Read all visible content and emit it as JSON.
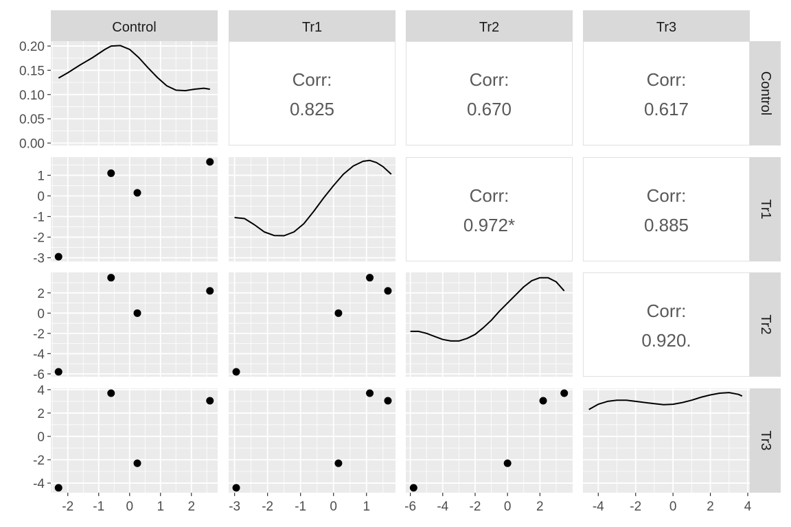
{
  "chart_data": {
    "type": "scatter",
    "variables": [
      "Control",
      "Tr1",
      "Tr2",
      "Tr3"
    ],
    "observations": {
      "Control": [
        -2.3,
        -0.6,
        0.25,
        2.6
      ],
      "Tr1": [
        -2.95,
        1.1,
        0.15,
        1.65
      ],
      "Tr2": [
        -5.8,
        3.5,
        0.0,
        2.2
      ],
      "Tr3": [
        -4.4,
        3.7,
        -2.3,
        3.05
      ]
    },
    "density_tick_labels": [
      "0.20",
      "0.15",
      "0.10",
      "0.05",
      "0.00"
    ],
    "density_ticks": [
      0.2,
      0.15,
      0.1,
      0.05,
      0.0
    ],
    "density_ylim": [
      -0.005,
      0.21
    ],
    "density_curves": {
      "Control": {
        "x": [
          -2.3,
          -2.0,
          -1.6,
          -1.2,
          -0.8,
          -0.6,
          -0.3,
          0.0,
          0.3,
          0.6,
          0.9,
          1.2,
          1.5,
          1.8,
          2.1,
          2.4,
          2.6
        ],
        "y": [
          0.134,
          0.145,
          0.161,
          0.176,
          0.193,
          0.2,
          0.201,
          0.193,
          0.176,
          0.155,
          0.135,
          0.118,
          0.109,
          0.108,
          0.111,
          0.113,
          0.111
        ]
      },
      "Tr1": {
        "x": [
          -3.0,
          -2.7,
          -2.4,
          -2.1,
          -1.8,
          -1.5,
          -1.2,
          -0.9,
          -0.6,
          -0.3,
          0.0,
          0.3,
          0.6,
          0.9,
          1.1,
          1.3,
          1.5,
          1.75
        ],
        "y": [
          -1.05,
          -1.1,
          -1.4,
          -1.75,
          -1.92,
          -1.93,
          -1.75,
          -1.35,
          -0.75,
          -0.1,
          0.5,
          1.05,
          1.45,
          1.68,
          1.72,
          1.62,
          1.42,
          1.05
        ]
      },
      "Tr2": {
        "x": [
          -6.0,
          -5.5,
          -5.0,
          -4.5,
          -4.0,
          -3.5,
          -3.0,
          -2.5,
          -2.0,
          -1.5,
          -1.0,
          -0.5,
          0.0,
          0.5,
          1.0,
          1.5,
          2.0,
          2.5,
          3.0,
          3.5
        ],
        "y": [
          -1.8,
          -1.8,
          -2.0,
          -2.3,
          -2.6,
          -2.75,
          -2.75,
          -2.5,
          -2.1,
          -1.45,
          -0.7,
          0.2,
          1.0,
          1.8,
          2.6,
          3.2,
          3.5,
          3.5,
          3.1,
          2.2
        ]
      },
      "Tr3": {
        "x": [
          -4.5,
          -4.0,
          -3.5,
          -3.0,
          -2.5,
          -2.0,
          -1.5,
          -1.0,
          -0.5,
          0.0,
          0.5,
          1.0,
          1.5,
          2.0,
          2.5,
          3.0,
          3.5,
          3.7
        ],
        "y": [
          2.3,
          2.75,
          3.0,
          3.1,
          3.1,
          3.0,
          2.9,
          2.8,
          2.72,
          2.75,
          2.9,
          3.1,
          3.35,
          3.55,
          3.7,
          3.75,
          3.6,
          3.45
        ]
      }
    },
    "correlations": [
      {
        "row": "Control",
        "col": "Tr1",
        "label": "Corr:",
        "value": "0.825"
      },
      {
        "row": "Control",
        "col": "Tr2",
        "label": "Corr:",
        "value": "0.670"
      },
      {
        "row": "Control",
        "col": "Tr3",
        "label": "Corr:",
        "value": "0.617"
      },
      {
        "row": "Tr1",
        "col": "Tr2",
        "label": "Corr:",
        "value": "0.972*"
      },
      {
        "row": "Tr1",
        "col": "Tr3",
        "label": "Corr:",
        "value": "0.885"
      },
      {
        "row": "Tr2",
        "col": "Tr3",
        "label": "Corr:",
        "value": "0.920."
      }
    ],
    "x_axes": {
      "Control": {
        "lim": [
          -2.55,
          2.85
        ],
        "ticks": [
          -2,
          -1,
          0,
          1,
          2
        ],
        "labels": [
          "-2",
          "-1",
          "0",
          "1",
          "2"
        ]
      },
      "Tr1": {
        "lim": [
          -3.18,
          1.88
        ],
        "ticks": [
          -3,
          -2,
          -1,
          0,
          1
        ],
        "labels": [
          "-3",
          "-2",
          "-1",
          "0",
          "1"
        ]
      },
      "Tr2": {
        "lim": [
          -6.28,
          4.02
        ],
        "ticks": [
          -6,
          -4,
          -2,
          0,
          2
        ],
        "labels": [
          "-6",
          "-4",
          "-2",
          "0",
          "2"
        ]
      },
      "Tr3": {
        "lim": [
          -4.82,
          4.11
        ],
        "ticks": [
          -4,
          -2,
          0,
          2,
          4
        ],
        "labels": [
          "-4",
          "-2",
          "0",
          "2",
          "4"
        ]
      }
    },
    "y_axes": {
      "Tr1": {
        "lim": [
          -3.18,
          1.88
        ],
        "ticks": [
          1,
          0,
          -1,
          -2,
          -3
        ],
        "labels": [
          "1",
          "0",
          "-1",
          "-2",
          "-3"
        ]
      },
      "Tr2": {
        "lim": [
          -6.28,
          4.02
        ],
        "ticks": [
          2,
          0,
          -2,
          -4,
          -6
        ],
        "labels": [
          "2",
          "0",
          "-2",
          "-4",
          "-6"
        ]
      },
      "Tr3": {
        "lim": [
          -4.82,
          4.11
        ],
        "ticks": [
          4,
          2,
          0,
          -2,
          -4
        ],
        "labels": [
          "4",
          "2",
          "0",
          "-2",
          "-4"
        ]
      }
    },
    "grid": true
  },
  "colors": {
    "panel_bg": "#ebebeb",
    "grid_major": "#ffffff",
    "strip_bg": "#d9d9d9",
    "points": "#000000",
    "corr_text": "#595959",
    "corr_border": "#e0e0e0"
  }
}
